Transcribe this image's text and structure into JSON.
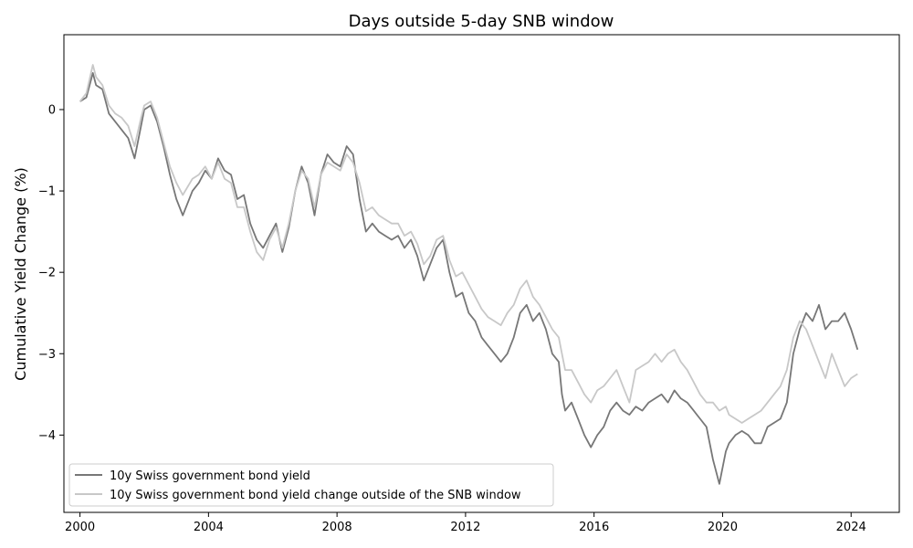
{
  "chart_data": {
    "type": "line",
    "title": "Days outside 5-day SNB window",
    "xlabel": "",
    "ylabel": "Cumulative Yield Change (%)",
    "xlim": [
      1999.5,
      2025.5
    ],
    "ylim": [
      -4.95,
      0.92
    ],
    "x_ticks": [
      2000,
      2004,
      2008,
      2012,
      2016,
      2020,
      2024
    ],
    "x_tick_labels": [
      "2000",
      "2004",
      "2008",
      "2012",
      "2016",
      "2020",
      "2024"
    ],
    "y_ticks": [
      0,
      -1,
      -2,
      -3,
      -4
    ],
    "y_tick_labels": [
      "0",
      "−1",
      "−2",
      "−3",
      "−4"
    ],
    "grid": false,
    "legend_position": "lower-left",
    "colors": {
      "series1": "#777777",
      "series2": "#c8c8c8"
    },
    "series": [
      {
        "name": "10y Swiss government bond yield",
        "x": [
          2000.0,
          2000.2,
          2000.4,
          2000.5,
          2000.7,
          2000.9,
          2001.1,
          2001.3,
          2001.5,
          2001.7,
          2001.9,
          2002.0,
          2002.2,
          2002.4,
          2002.6,
          2002.8,
          2003.0,
          2003.2,
          2003.5,
          2003.7,
          2003.9,
          2004.1,
          2004.3,
          2004.5,
          2004.7,
          2004.9,
          2005.1,
          2005.3,
          2005.5,
          2005.7,
          2005.9,
          2006.1,
          2006.3,
          2006.5,
          2006.7,
          2006.9,
          2007.1,
          2007.3,
          2007.5,
          2007.7,
          2007.9,
          2008.1,
          2008.3,
          2008.5,
          2008.7,
          2008.9,
          2009.1,
          2009.3,
          2009.5,
          2009.7,
          2009.9,
          2010.1,
          2010.3,
          2010.5,
          2010.7,
          2010.9,
          2011.1,
          2011.3,
          2011.5,
          2011.7,
          2011.9,
          2012.1,
          2012.3,
          2012.5,
          2012.7,
          2012.9,
          2013.1,
          2013.3,
          2013.5,
          2013.7,
          2013.9,
          2014.1,
          2014.3,
          2014.5,
          2014.7,
          2014.9,
          2015.0,
          2015.1,
          2015.3,
          2015.5,
          2015.7,
          2015.9,
          2016.1,
          2016.3,
          2016.5,
          2016.7,
          2016.9,
          2017.1,
          2017.3,
          2017.5,
          2017.7,
          2017.9,
          2018.1,
          2018.3,
          2018.5,
          2018.7,
          2018.9,
          2019.1,
          2019.3,
          2019.5,
          2019.7,
          2019.9,
          2020.1,
          2020.2,
          2020.4,
          2020.6,
          2020.8,
          2021.0,
          2021.2,
          2021.4,
          2021.6,
          2021.8,
          2022.0,
          2022.2,
          2022.4,
          2022.6,
          2022.8,
          2023.0,
          2023.2,
          2023.4,
          2023.6,
          2023.8,
          2024.0,
          2024.2
        ],
        "values": [
          0.1,
          0.15,
          0.45,
          0.3,
          0.25,
          -0.05,
          -0.15,
          -0.25,
          -0.35,
          -0.6,
          -0.2,
          0.0,
          0.05,
          -0.15,
          -0.45,
          -0.8,
          -1.1,
          -1.3,
          -1.0,
          -0.9,
          -0.75,
          -0.85,
          -0.6,
          -0.75,
          -0.8,
          -1.1,
          -1.05,
          -1.4,
          -1.6,
          -1.7,
          -1.55,
          -1.4,
          -1.75,
          -1.45,
          -1.0,
          -0.7,
          -0.9,
          -1.3,
          -0.8,
          -0.55,
          -0.65,
          -0.7,
          -0.45,
          -0.55,
          -1.1,
          -1.5,
          -1.4,
          -1.5,
          -1.55,
          -1.6,
          -1.55,
          -1.7,
          -1.6,
          -1.8,
          -2.1,
          -1.9,
          -1.7,
          -1.6,
          -2.0,
          -2.3,
          -2.25,
          -2.5,
          -2.6,
          -2.8,
          -2.9,
          -3.0,
          -3.1,
          -3.0,
          -2.8,
          -2.5,
          -2.4,
          -2.6,
          -2.5,
          -2.7,
          -3.0,
          -3.1,
          -3.5,
          -3.7,
          -3.6,
          -3.8,
          -4.0,
          -4.15,
          -4.0,
          -3.9,
          -3.7,
          -3.6,
          -3.7,
          -3.75,
          -3.65,
          -3.7,
          -3.6,
          -3.55,
          -3.5,
          -3.6,
          -3.45,
          -3.55,
          -3.6,
          -3.7,
          -3.8,
          -3.9,
          -4.3,
          -4.6,
          -4.2,
          -4.1,
          -4.0,
          -3.95,
          -4.0,
          -4.1,
          -4.1,
          -3.9,
          -3.85,
          -3.8,
          -3.6,
          -3.0,
          -2.7,
          -2.5,
          -2.6,
          -2.4,
          -2.7,
          -2.6,
          -2.6,
          -2.5,
          -2.7,
          -2.95
        ]
      },
      {
        "name": "10y Swiss government bond yield change outside of the SNB window",
        "x": [
          2000.0,
          2000.2,
          2000.4,
          2000.5,
          2000.7,
          2000.9,
          2001.1,
          2001.3,
          2001.5,
          2001.7,
          2001.9,
          2002.0,
          2002.2,
          2002.4,
          2002.6,
          2002.8,
          2003.0,
          2003.2,
          2003.5,
          2003.7,
          2003.9,
          2004.1,
          2004.3,
          2004.5,
          2004.7,
          2004.9,
          2005.1,
          2005.3,
          2005.5,
          2005.7,
          2005.9,
          2006.1,
          2006.3,
          2006.5,
          2006.7,
          2006.9,
          2007.1,
          2007.3,
          2007.5,
          2007.7,
          2007.9,
          2008.1,
          2008.3,
          2008.5,
          2008.7,
          2008.9,
          2009.1,
          2009.3,
          2009.5,
          2009.7,
          2009.9,
          2010.1,
          2010.3,
          2010.5,
          2010.7,
          2010.9,
          2011.1,
          2011.3,
          2011.5,
          2011.7,
          2011.9,
          2012.1,
          2012.3,
          2012.5,
          2012.7,
          2012.9,
          2013.1,
          2013.3,
          2013.5,
          2013.7,
          2013.9,
          2014.1,
          2014.3,
          2014.5,
          2014.7,
          2014.9,
          2015.0,
          2015.1,
          2015.3,
          2015.5,
          2015.7,
          2015.9,
          2016.1,
          2016.3,
          2016.5,
          2016.7,
          2016.9,
          2017.1,
          2017.3,
          2017.5,
          2017.7,
          2017.9,
          2018.1,
          2018.3,
          2018.5,
          2018.7,
          2018.9,
          2019.1,
          2019.3,
          2019.5,
          2019.7,
          2019.9,
          2020.1,
          2020.2,
          2020.4,
          2020.6,
          2020.8,
          2021.0,
          2021.2,
          2021.4,
          2021.6,
          2021.8,
          2022.0,
          2022.2,
          2022.4,
          2022.6,
          2022.8,
          2023.0,
          2023.2,
          2023.4,
          2023.6,
          2023.8,
          2024.0,
          2024.2
        ],
        "values": [
          0.1,
          0.2,
          0.55,
          0.4,
          0.3,
          0.05,
          -0.05,
          -0.1,
          -0.2,
          -0.45,
          -0.1,
          0.05,
          0.1,
          -0.1,
          -0.4,
          -0.7,
          -0.9,
          -1.05,
          -0.85,
          -0.8,
          -0.7,
          -0.85,
          -0.65,
          -0.85,
          -0.9,
          -1.2,
          -1.2,
          -1.5,
          -1.75,
          -1.85,
          -1.6,
          -1.45,
          -1.7,
          -1.4,
          -1.0,
          -0.75,
          -0.85,
          -1.2,
          -0.8,
          -0.65,
          -0.7,
          -0.75,
          -0.55,
          -0.65,
          -0.9,
          -1.25,
          -1.2,
          -1.3,
          -1.35,
          -1.4,
          -1.4,
          -1.55,
          -1.5,
          -1.65,
          -1.9,
          -1.8,
          -1.6,
          -1.55,
          -1.85,
          -2.05,
          -2.0,
          -2.15,
          -2.3,
          -2.45,
          -2.55,
          -2.6,
          -2.65,
          -2.5,
          -2.4,
          -2.2,
          -2.1,
          -2.3,
          -2.4,
          -2.55,
          -2.7,
          -2.8,
          -3.0,
          -3.2,
          -3.2,
          -3.35,
          -3.5,
          -3.6,
          -3.45,
          -3.4,
          -3.3,
          -3.2,
          -3.4,
          -3.6,
          -3.2,
          -3.15,
          -3.1,
          -3.0,
          -3.1,
          -3.0,
          -2.95,
          -3.1,
          -3.2,
          -3.35,
          -3.5,
          -3.6,
          -3.6,
          -3.7,
          -3.65,
          -3.75,
          -3.8,
          -3.85,
          -3.8,
          -3.75,
          -3.7,
          -3.6,
          -3.5,
          -3.4,
          -3.2,
          -2.8,
          -2.6,
          -2.7,
          -2.9,
          -3.1,
          -3.3,
          -3.0,
          -3.2,
          -3.4,
          -3.3,
          -3.25
        ]
      }
    ]
  }
}
